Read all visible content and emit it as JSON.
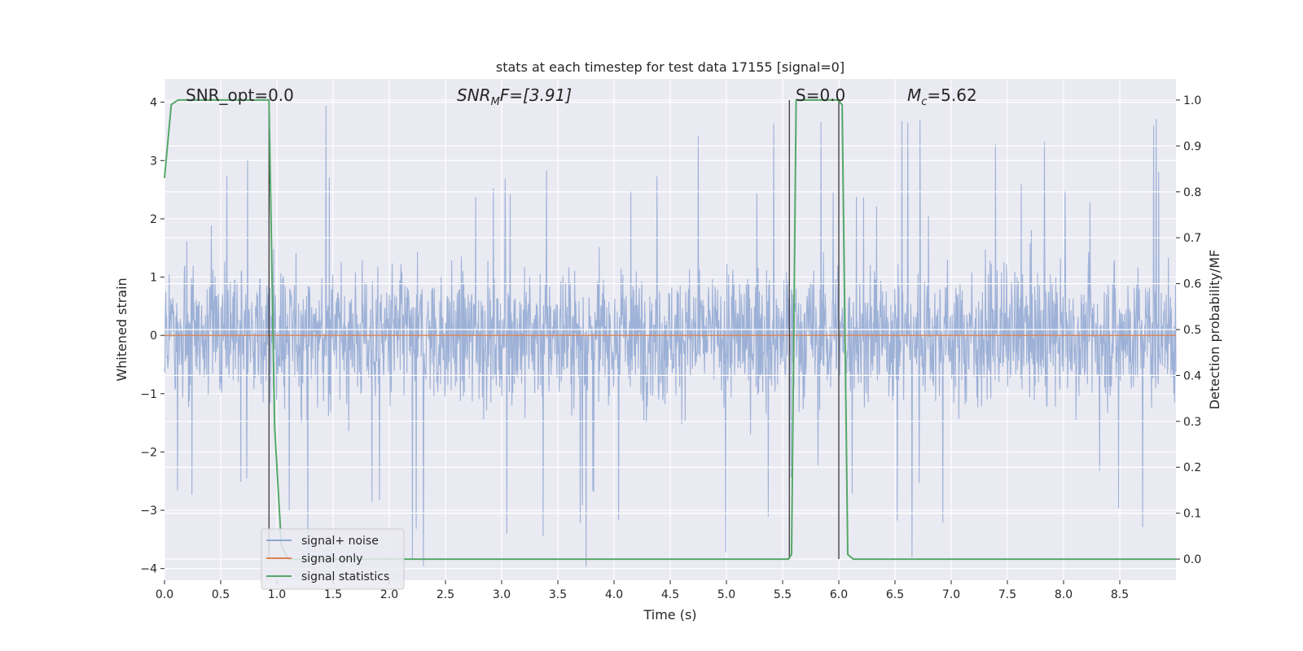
{
  "chart_data": {
    "type": "line",
    "title": "stats at each timestep for test data 17155 [signal=0]",
    "xlabel": "Time (s)",
    "ylabel": "Whitened strain",
    "y2label": "Detection probability/MF",
    "xlim": [
      0.0,
      9.0
    ],
    "ylim": [
      -4.2,
      4.4
    ],
    "y2lim": [
      -0.046,
      1.046
    ],
    "xticks": [
      "0.0",
      "0.5",
      "1.0",
      "1.5",
      "2.0",
      "2.5",
      "3.0",
      "3.5",
      "4.0",
      "4.5",
      "5.0",
      "5.5",
      "6.0",
      "6.5",
      "7.0",
      "7.5",
      "8.0",
      "8.5"
    ],
    "xtick_values": [
      0.0,
      0.5,
      1.0,
      1.5,
      2.0,
      2.5,
      3.0,
      3.5,
      4.0,
      4.5,
      5.0,
      5.5,
      6.0,
      6.5,
      7.0,
      7.5,
      8.0,
      8.5
    ],
    "yticks": [
      "−4",
      "−3",
      "−2",
      "−1",
      "0",
      "1",
      "2",
      "3",
      "4"
    ],
    "ytick_values": [
      -4,
      -3,
      -2,
      -1,
      0,
      1,
      2,
      3,
      4
    ],
    "y2ticks": [
      "0.0",
      "0.1",
      "0.2",
      "0.3",
      "0.4",
      "0.5",
      "0.6",
      "0.7",
      "0.8",
      "0.9",
      "1.0"
    ],
    "y2tick_values": [
      0.0,
      0.1,
      0.2,
      0.3,
      0.4,
      0.5,
      0.6,
      0.7,
      0.8,
      0.9,
      1.0
    ],
    "grid": true,
    "legend_placement": "lower-left",
    "annotations": {
      "snr_opt": "SNR_opt=0.0",
      "snr_mf_base": "SNR",
      "snr_mf_sub": "M",
      "snr_mf_tail": "F=[3.91]",
      "s": "S=0.0",
      "mc_base": "M",
      "mc_sub": "c",
      "mc_tail": "=5.62"
    },
    "series": [
      {
        "name": "signal+ noise",
        "color": "#8fa7d2",
        "description_axis": "left",
        "noise_amplitude_typical": 2.0,
        "noise_amplitude_peak": 4.0,
        "x_range": [
          0.0,
          9.0
        ]
      },
      {
        "name": "signal only",
        "color": "#dd8452",
        "axis": "left",
        "x": [
          0.0,
          9.0
        ],
        "y": [
          0.0,
          0.0
        ]
      },
      {
        "name": "signal statistics",
        "color": "#55a868",
        "axis": "right",
        "x": [
          0.0,
          0.06,
          0.12,
          0.93,
          0.98,
          1.04,
          1.1,
          5.55,
          5.58,
          5.62,
          5.99,
          6.03,
          6.08,
          6.13,
          9.0
        ],
        "y": [
          0.83,
          0.99,
          1.0,
          1.0,
          0.29,
          0.03,
          0.0,
          0.0,
          0.01,
          1.0,
          1.0,
          0.99,
          0.01,
          0.0,
          0.0
        ]
      }
    ],
    "vlines": [
      {
        "x": 0.93,
        "ymin": 0.0,
        "ymax": 1.0
      },
      {
        "x": 5.56,
        "ymin": 0.0,
        "ymax": 1.0
      },
      {
        "x": 6.0,
        "ymin": 0.0,
        "ymax": 1.0
      }
    ],
    "colors": {
      "background": "#eaeaf2",
      "grid": "#ffffff",
      "vline": "#3a3a3a"
    }
  }
}
